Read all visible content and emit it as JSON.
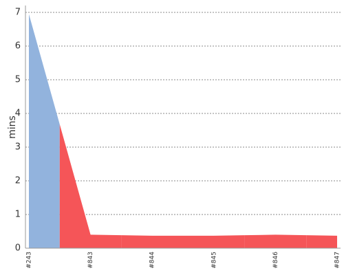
{
  "chart_data": {
    "type": "area",
    "y_label": "mins",
    "categories": [
      "#243",
      "#843",
      "#844",
      "#845",
      "#846",
      "#847"
    ],
    "values": [
      6.95,
      0.4,
      0.37,
      0.37,
      0.4,
      0.37
    ],
    "point_colors": [
      "#92b3dd",
      "#f55558",
      "#f55558",
      "#f55558",
      "#f55558",
      "#f55558"
    ],
    "ylim": [
      0,
      7
    ],
    "yticks": [
      0,
      1,
      2,
      3,
      4,
      5,
      6,
      7
    ],
    "grid": true
  }
}
